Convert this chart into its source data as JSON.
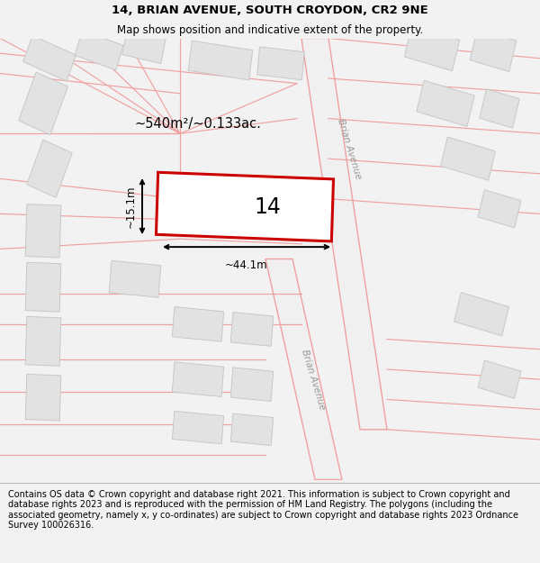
{
  "title": "14, BRIAN AVENUE, SOUTH CROYDON, CR2 9NE",
  "subtitle": "Map shows position and indicative extent of the property.",
  "footer": "Contains OS data © Crown copyright and database right 2021. This information is subject to Crown copyright and database rights 2023 and is reproduced with the permission of HM Land Registry. The polygons (including the associated geometry, namely x, y co-ordinates) are subject to Crown copyright and database rights 2023 Ordnance Survey 100026316.",
  "background_color": "#f2f2f2",
  "map_bg": "#f8f8f8",
  "building_fill": "#e2e2e2",
  "building_edge": "#c8c8c8",
  "road_line_color": "#f0a0a0",
  "highlight_rect_color": "#cc0000",
  "highlight_rect_fill": "#ffffff",
  "highlight_label": "14",
  "area_label": "~540m²/~0.133ac.",
  "width_label": "~44.1m",
  "height_label": "~15.1m",
  "road_label_1": "Brian Avenue",
  "road_label_2": "Brian Avenue",
  "title_fontsize": 9.5,
  "subtitle_fontsize": 8.5,
  "footer_fontsize": 7.0
}
